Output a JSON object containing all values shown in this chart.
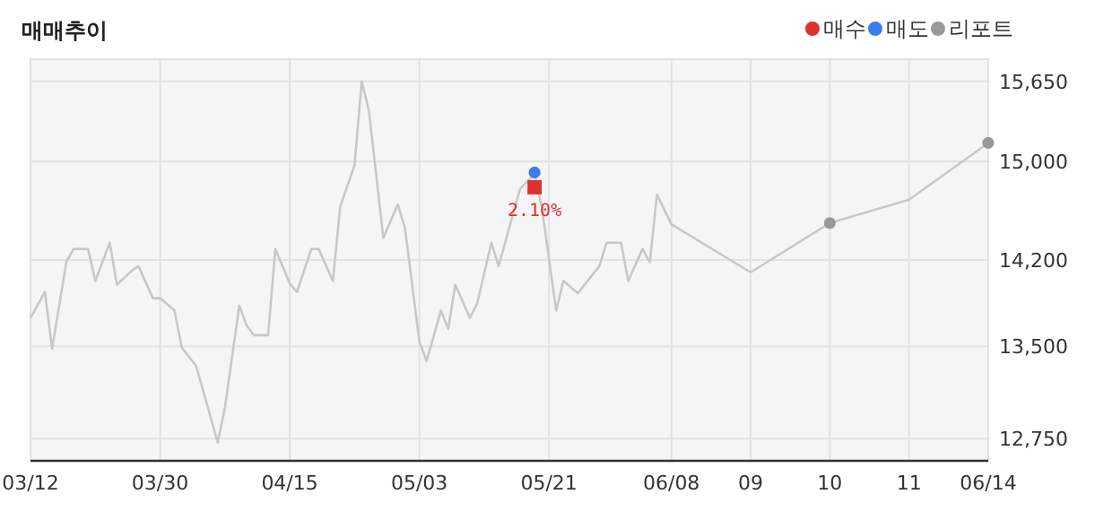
{
  "chart_data": {
    "type": "line",
    "title": "매매추이",
    "legend": "top right",
    "grid": true,
    "categories": [
      "03/12",
      null,
      null,
      null,
      null,
      null,
      null,
      null,
      null,
      null,
      null,
      null,
      null,
      null,
      null,
      null,
      null,
      null,
      "03/30",
      null,
      null,
      null,
      null,
      null,
      null,
      null,
      null,
      null,
      null,
      null,
      null,
      null,
      null,
      null,
      null,
      null,
      "04/15",
      null,
      null,
      null,
      null,
      null,
      null,
      null,
      null,
      null,
      null,
      null,
      null,
      null,
      null,
      null,
      null,
      null,
      "05/03",
      null,
      null,
      null,
      null,
      null,
      null,
      null,
      null,
      null,
      null,
      null,
      null,
      null,
      null,
      null,
      null,
      null,
      "05/21",
      null,
      null,
      null,
      null,
      null,
      null,
      null,
      null,
      null,
      null,
      null,
      null,
      null,
      null,
      null,
      null,
      "06/08",
      null,
      null,
      null,
      null,
      null,
      null,
      null,
      null,
      null,
      null,
      "09",
      null,
      null,
      null,
      null,
      null,
      null,
      null,
      null,
      null,
      null,
      "10",
      null,
      null,
      null,
      null,
      null,
      null,
      null,
      null,
      null,
      null,
      "11",
      null,
      null,
      null,
      null,
      null,
      null,
      null,
      null,
      null,
      null,
      "06/14"
    ],
    "ylim": [
      12570,
      15830
    ],
    "yticks": [
      {
        "value": 12750,
        "label": "12,750"
      },
      {
        "value": 13500,
        "label": "13,500"
      },
      {
        "value": 14200,
        "label": "14,200"
      },
      {
        "value": 15000,
        "label": "15,000"
      },
      {
        "value": 15650,
        "label": "15,650"
      }
    ],
    "series": [
      {
        "marker": "none",
        "color": "#c8c8c8",
        "values": [
          13730,
          null,
          13940,
          13480,
          null,
          14190,
          14290,
          null,
          14290,
          14030,
          null,
          14340,
          14000,
          null,
          14110,
          14150,
          null,
          13890,
          13890,
          null,
          13790,
          13490,
          null,
          13340,
          null,
          null,
          12720,
          13000,
          null,
          13830,
          13670,
          13590,
          null,
          13590,
          14290,
          null,
          14010,
          13940,
          null,
          14290,
          14290,
          null,
          14030,
          14630,
          null,
          14970,
          15650,
          15410,
          null,
          14380,
          null,
          14650,
          14460,
          null,
          13540,
          13380,
          null,
          13790,
          13640,
          14000,
          null,
          13730,
          13840,
          null,
          14340,
          14150,
          null,
          null,
          14780,
          null,
          14900,
          14630,
          null,
          13790,
          14030,
          null,
          13930,
          null,
          null,
          14150,
          14340,
          null,
          14340,
          14030,
          null,
          14290,
          14180,
          14730,
          null,
          14490,
          null,
          null,
          null,
          null,
          null,
          null,
          null,
          null,
          null,
          null,
          14100,
          null,
          null,
          null,
          null,
          null,
          null,
          null,
          null,
          null,
          null,
          14500,
          null,
          null,
          null,
          null,
          null,
          null,
          null,
          null,
          null,
          null,
          14690,
          null,
          null,
          null,
          null,
          null,
          null,
          null,
          null,
          null,
          null,
          15150
        ]
      },
      {
        "type": "scatter",
        "name": "매수",
        "marker": "square",
        "color": "#e03131",
        "values": [
          null,
          null,
          null,
          null,
          null,
          null,
          null,
          null,
          null,
          null,
          null,
          null,
          null,
          null,
          null,
          null,
          null,
          null,
          null,
          null,
          null,
          null,
          null,
          null,
          null,
          null,
          null,
          null,
          null,
          null,
          null,
          null,
          null,
          null,
          null,
          null,
          null,
          null,
          null,
          null,
          null,
          null,
          null,
          null,
          null,
          null,
          null,
          null,
          null,
          null,
          null,
          null,
          null,
          null,
          null,
          null,
          null,
          null,
          null,
          null,
          null,
          null,
          null,
          null,
          null,
          null,
          null,
          null,
          null,
          null,
          14790,
          null,
          null,
          null,
          null,
          null,
          null,
          null,
          null,
          null,
          null,
          null,
          null,
          null,
          null,
          null,
          null,
          null,
          null,
          null,
          null,
          null,
          null,
          null,
          null,
          null,
          null,
          null,
          null,
          null,
          null,
          null,
          null,
          null,
          null,
          null,
          null,
          null,
          null,
          null,
          null,
          null,
          null,
          null,
          null,
          null,
          null,
          null,
          null,
          null,
          null,
          null,
          null,
          null,
          null,
          null,
          null,
          null,
          null,
          null,
          null,
          null,
          null,
          null
        ]
      },
      {
        "type": "scatter",
        "name": "매도",
        "marker": "circle",
        "color": "#3b7ded",
        "values": [
          null,
          null,
          null,
          null,
          null,
          null,
          null,
          null,
          null,
          null,
          null,
          null,
          null,
          null,
          null,
          null,
          null,
          null,
          null,
          null,
          null,
          null,
          null,
          null,
          null,
          null,
          null,
          null,
          null,
          null,
          null,
          null,
          null,
          null,
          null,
          null,
          null,
          null,
          null,
          null,
          null,
          null,
          null,
          null,
          null,
          null,
          null,
          null,
          null,
          null,
          null,
          null,
          null,
          null,
          null,
          null,
          null,
          null,
          null,
          null,
          null,
          null,
          null,
          null,
          null,
          null,
          null,
          null,
          null,
          null,
          14910,
          null,
          null,
          null,
          null,
          null,
          null,
          null,
          null,
          null,
          null,
          null,
          null,
          null,
          null,
          null,
          null,
          null,
          null,
          null,
          null,
          null,
          null,
          null,
          null,
          null,
          null,
          null,
          null,
          null,
          null,
          null,
          null,
          null,
          null,
          null,
          null,
          null,
          null,
          null,
          null,
          null,
          null,
          null,
          null,
          null,
          null,
          null,
          null,
          null,
          null,
          null,
          null,
          null,
          null,
          null,
          null,
          null,
          null,
          null,
          null,
          null,
          null,
          null
        ]
      },
      {
        "type": "scatter",
        "name": "리포트",
        "marker": "circle",
        "color": "#999999",
        "values": [
          null,
          null,
          null,
          null,
          null,
          null,
          null,
          null,
          null,
          null,
          null,
          null,
          null,
          null,
          null,
          null,
          null,
          null,
          null,
          null,
          null,
          null,
          null,
          null,
          null,
          null,
          null,
          null,
          null,
          null,
          null,
          null,
          null,
          null,
          null,
          null,
          null,
          null,
          null,
          null,
          null,
          null,
          null,
          null,
          null,
          null,
          null,
          null,
          null,
          null,
          null,
          null,
          null,
          null,
          null,
          null,
          null,
          null,
          null,
          null,
          null,
          null,
          null,
          null,
          null,
          null,
          null,
          null,
          null,
          null,
          null,
          null,
          null,
          null,
          null,
          null,
          null,
          null,
          null,
          null,
          null,
          null,
          null,
          null,
          null,
          null,
          null,
          null,
          null,
          null,
          null,
          null,
          null,
          null,
          null,
          null,
          null,
          null,
          null,
          null,
          null,
          null,
          null,
          null,
          null,
          null,
          null,
          null,
          null,
          null,
          null,
          14500,
          null,
          null,
          null,
          null,
          null,
          null,
          null,
          null,
          null,
          null,
          null,
          null,
          null,
          null,
          null,
          null,
          null,
          null,
          null,
          null,
          null,
          15150
        ]
      }
    ],
    "annotations": [
      {
        "text": "2.10%",
        "y": 14790
      }
    ]
  }
}
